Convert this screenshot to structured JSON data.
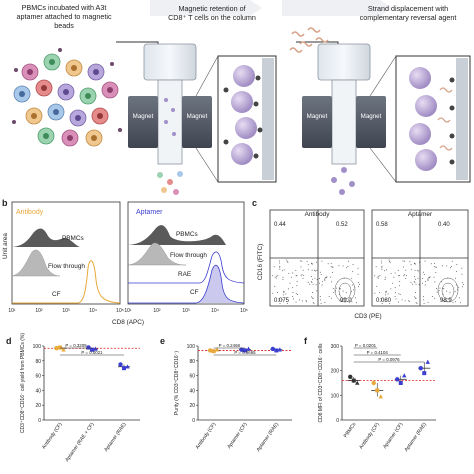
{
  "panel_a": {
    "step1_line1": "PBMCs incubated with A3t",
    "step1_line2": "aptamer attached to magnetic",
    "step1_line3": "beads",
    "step2_line1": "Magnetic retention of",
    "step2_line2": "CD8⁺ T cells on the column",
    "step3_line1": "Strand displacement with",
    "step3_line2": "complementary reversal agent",
    "magnet": "Magnet"
  },
  "panel_b": {
    "letter": "b",
    "left_title": "Antibody",
    "right_title": "Aptamer",
    "ylabel": "Unit area",
    "xlabel": "CD8 (APC)",
    "left_labels": [
      "PBMCs",
      "Flow through",
      "CF"
    ],
    "right_labels": [
      "PBMCs",
      "Flow through",
      "RAE",
      "CF"
    ],
    "ticks": [
      "10¹",
      "10²",
      "10³",
      "10⁴",
      "10⁵"
    ],
    "colors": {
      "antibody": "#e8a83a",
      "aptamer": "#3b3fd0"
    }
  },
  "panel_c": {
    "letter": "c",
    "left_title": "Antibody",
    "right_title": "Aptamer",
    "ylabel": "CD16 (FITC)",
    "xlabel": "CD3 (PE)",
    "left_quadrants": [
      "0.44",
      "0.52",
      "0.075",
      "99.0"
    ],
    "right_quadrants": [
      "0.58",
      "0.40",
      "0.080",
      "98.9"
    ]
  },
  "chart_data": [
    {
      "type": "scatter",
      "panel": "d",
      "ylabel": "CD3⁺CD8⁺CD16⁻ cell yield from PBMCs (%)",
      "ylim": [
        0,
        100
      ],
      "yticks": [
        "0",
        "20",
        "40",
        "60",
        "80",
        "100"
      ],
      "categories": [
        "Antibody (CF)",
        "Aptamer (RAE + CF)",
        "Aptamer (RAE)"
      ],
      "values": [
        [
          97,
          98,
          95
        ],
        [
          98,
          95,
          96
        ],
        [
          75,
          70,
          72
        ]
      ],
      "means": [
        97,
        96,
        72
      ],
      "colors": [
        "#e8a83a",
        "#3b3fd0",
        "#3b3fd0"
      ],
      "annotations": [
        "P = 0.3209",
        "P = 0.0021"
      ]
    },
    {
      "type": "scatter",
      "panel": "e",
      "ylabel": "Purity (% CD3⁺CD8⁺CD16⁻)",
      "ylim": [
        0,
        100
      ],
      "yticks": [
        "0",
        "20",
        "40",
        "60",
        "80",
        "100"
      ],
      "categories": [
        "Antibody (CF)",
        "Aptamer (CF)",
        "Aptamer (RAE)"
      ],
      "values": [
        [
          94,
          93,
          95
        ],
        [
          95,
          94,
          96
        ],
        [
          96,
          94,
          95
        ]
      ],
      "means": [
        94,
        95,
        95
      ],
      "colors": [
        "#e8a83a",
        "#3b3fd0",
        "#3b3fd0"
      ],
      "annotations": [
        "P = 0.2468",
        "P = 0.9665"
      ]
    },
    {
      "type": "scatter",
      "panel": "f",
      "ylabel": "CD8 MFI of CD3⁺CD8⁺CD16⁻ cells",
      "ylim": [
        0,
        300
      ],
      "yticks": [
        "0",
        "100",
        "200",
        "300"
      ],
      "categories": [
        "PBMCs",
        "Antibody (CF)",
        "Aptamer (CF)",
        "Aptamer (RAE)"
      ],
      "values": [
        [
          175,
          160,
          150
        ],
        [
          150,
          120,
          95
        ],
        [
          165,
          150,
          180
        ],
        [
          210,
          190,
          235
        ]
      ],
      "means": [
        160,
        120,
        165,
        210
      ],
      "colors": [
        "#333333",
        "#e8a83a",
        "#3b3fd0",
        "#3b3fd0"
      ],
      "annotations": [
        "P = 0.0201",
        "P = 0.4104",
        "P = 0.0976"
      ]
    }
  ]
}
